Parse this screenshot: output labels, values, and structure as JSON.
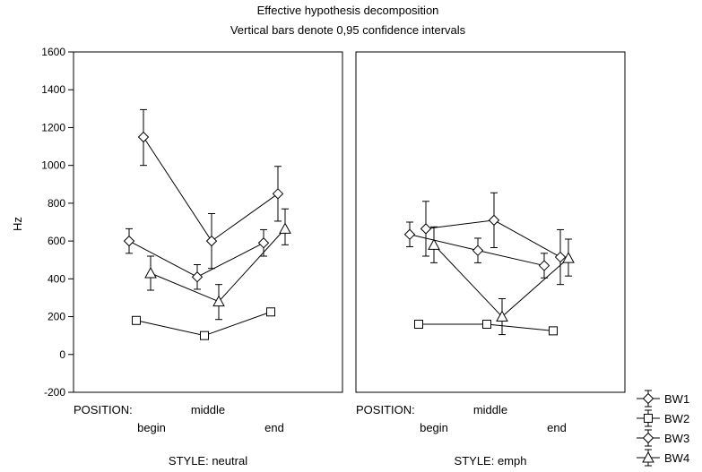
{
  "chart_data": {
    "type": "line",
    "title": "Effective hypothesis decomposition",
    "subtitle": "Vertical bars denote 0,95 confidence intervals",
    "ylabel": "Hz",
    "ylim": [
      -200,
      1600
    ],
    "yticks": [
      -200,
      0,
      200,
      400,
      600,
      800,
      1000,
      1200,
      1400,
      1600
    ],
    "x_factor_label": "POSITION:",
    "categories": [
      "begin",
      "middle",
      "end"
    ],
    "panel_factor": "STYLE:",
    "grid": false,
    "legend_position": "bottom-right",
    "panels": [
      {
        "style": "neutral",
        "series": [
          {
            "name": "BW1",
            "marker": "diamond",
            "values": [
              600,
              410,
              590
            ],
            "ci": [
              [
                535,
                665
              ],
              [
                345,
                475
              ],
              [
                520,
                660
              ]
            ]
          },
          {
            "name": "BW2",
            "marker": "square",
            "values": [
              180,
              100,
              225
            ],
            "ci": [
              [
                170,
                190
              ],
              [
                90,
                110
              ],
              [
                215,
                235
              ]
            ]
          },
          {
            "name": "BW3",
            "marker": "diamond",
            "values": [
              1150,
              600,
              850
            ],
            "ci": [
              [
                1000,
                1295
              ],
              [
                455,
                745
              ],
              [
                705,
                995
              ]
            ]
          },
          {
            "name": "BW4",
            "marker": "triangle",
            "values": [
              430,
              280,
              665
            ],
            "ci": [
              [
                340,
                520
              ],
              [
                185,
                370
              ],
              [
                580,
                770
              ]
            ]
          }
        ]
      },
      {
        "style": "emph",
        "series": [
          {
            "name": "BW1",
            "marker": "diamond",
            "values": [
              635,
              550,
              470
            ],
            "ci": [
              [
                570,
                700
              ],
              [
                485,
                615
              ],
              [
                405,
                535
              ]
            ]
          },
          {
            "name": "BW2",
            "marker": "square",
            "values": [
              160,
              160,
              125
            ],
            "ci": [
              [
                150,
                170
              ],
              [
                150,
                170
              ],
              [
                115,
                135
              ]
            ]
          },
          {
            "name": "BW3",
            "marker": "diamond",
            "values": [
              665,
              710,
              515
            ],
            "ci": [
              [
                520,
                810
              ],
              [
                565,
                855
              ],
              [
                370,
                660
              ]
            ]
          },
          {
            "name": "BW4",
            "marker": "triangle",
            "values": [
              580,
              200,
              510
            ],
            "ci": [
              [
                485,
                675
              ],
              [
                105,
                295
              ],
              [
                415,
                610
              ]
            ]
          }
        ]
      }
    ],
    "legend": [
      "BW1",
      "BW2",
      "BW3",
      "BW4"
    ]
  }
}
